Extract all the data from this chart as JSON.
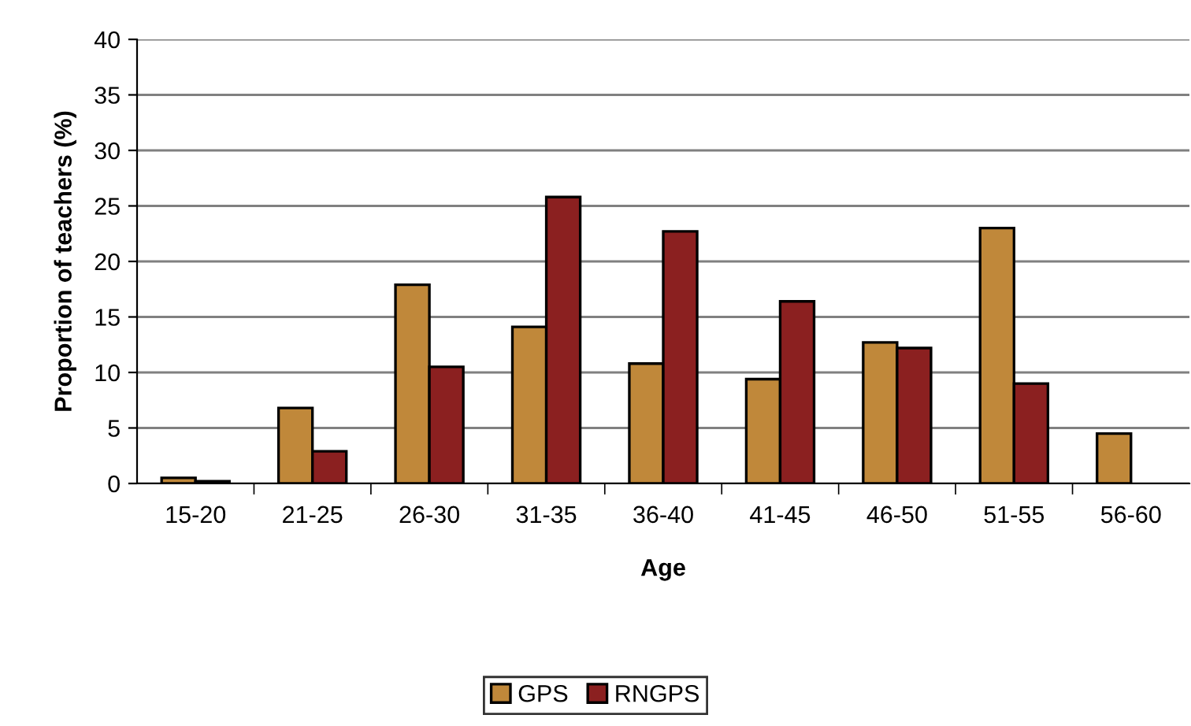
{
  "chart_data": {
    "type": "bar",
    "xlabel": "Age",
    "ylabel": "Proportion of teachers (%)",
    "categories": [
      "15-20",
      "21-25",
      "26-30",
      "31-35",
      "36-40",
      "41-45",
      "46-50",
      "51-55",
      "56-60"
    ],
    "series": [
      {
        "name": "GPS",
        "color": "#c0883a",
        "values": [
          0.5,
          6.8,
          17.9,
          14.1,
          10.8,
          9.4,
          12.7,
          23.0,
          4.5
        ]
      },
      {
        "name": "RNGPS",
        "color": "#8b2020",
        "values": [
          0.2,
          2.9,
          10.5,
          25.8,
          22.7,
          16.4,
          12.2,
          9.0,
          null
        ]
      }
    ],
    "ylim": [
      0,
      40
    ],
    "yticks": [
      0,
      5,
      10,
      15,
      20,
      25,
      30,
      35,
      40
    ],
    "grid": "y",
    "legend": "bottom"
  }
}
